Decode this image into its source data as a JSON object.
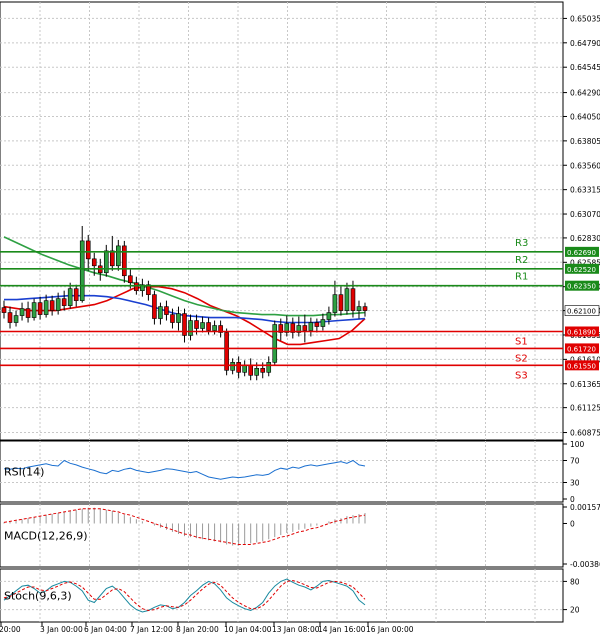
{
  "chart_data": {
    "type": "candlestick",
    "price_axis": {
      "ticks": [
        "0.65035",
        "0.64790",
        "0.64545",
        "0.64290",
        "0.64050",
        "0.63805",
        "0.63560",
        "0.63315",
        "0.63070",
        "0.62830",
        "0.62585",
        "0.62340",
        "0.62100",
        "0.61855",
        "0.61610",
        "0.61365",
        "0.61125",
        "0.60875"
      ],
      "range": [
        0.608,
        0.652
      ]
    },
    "time_axis": [
      "20:00",
      "3 Jan 00:00",
      "6 Jan 04:00",
      "7 Jan 12:00",
      "8 Jan 20:00",
      "10 Jan 04:00",
      "13 Jan 08:00",
      "14 Jan 16:00",
      "16 Jan 00:00"
    ],
    "levels": [
      {
        "name": "R3",
        "value": 0.6269,
        "label": "0.62690",
        "color": "#1a8a1a"
      },
      {
        "name": "R2",
        "value": 0.6252,
        "label": "0.62520",
        "color": "#1a8a1a"
      },
      {
        "name": "R1",
        "value": 0.6235,
        "label": "0.62350",
        "color": "#1a8a1a"
      },
      {
        "name": "S1",
        "value": 0.6189,
        "label": "0.61890",
        "color": "#e00000"
      },
      {
        "name": "S2",
        "value": 0.6172,
        "label": "0.61720",
        "color": "#e00000"
      },
      {
        "name": "S3",
        "value": 0.6155,
        "label": "0.61550",
        "color": "#e00000"
      }
    ],
    "current_price": {
      "value": 0.621,
      "label": "0.62100"
    },
    "candles": [
      [
        0.6213,
        0.6208,
        0.622,
        0.6202
      ],
      [
        0.6208,
        0.6198,
        0.6214,
        0.6192
      ],
      [
        0.6198,
        0.6205,
        0.621,
        0.6194
      ],
      [
        0.6205,
        0.6212,
        0.6218,
        0.62
      ],
      [
        0.6212,
        0.6203,
        0.6219,
        0.6198
      ],
      [
        0.6203,
        0.6218,
        0.6222,
        0.62
      ],
      [
        0.6218,
        0.6206,
        0.6224,
        0.6201
      ],
      [
        0.6206,
        0.622,
        0.6226,
        0.6203
      ],
      [
        0.622,
        0.621,
        0.6225,
        0.6205
      ],
      [
        0.621,
        0.6222,
        0.6228,
        0.6206
      ],
      [
        0.6222,
        0.6215,
        0.623,
        0.621
      ],
      [
        0.6215,
        0.6232,
        0.6238,
        0.6212
      ],
      [
        0.6232,
        0.622,
        0.6236,
        0.6214
      ],
      [
        0.622,
        0.628,
        0.6295,
        0.6218
      ],
      [
        0.628,
        0.6262,
        0.6286,
        0.625
      ],
      [
        0.6262,
        0.6255,
        0.6268,
        0.6245
      ],
      [
        0.6255,
        0.6248,
        0.6262,
        0.624
      ],
      [
        0.6248,
        0.627,
        0.6276,
        0.6244
      ],
      [
        0.627,
        0.6255,
        0.6285,
        0.625
      ],
      [
        0.6255,
        0.6275,
        0.6281,
        0.625
      ],
      [
        0.6275,
        0.6245,
        0.628,
        0.6238
      ],
      [
        0.6245,
        0.6238,
        0.6252,
        0.6232
      ],
      [
        0.6238,
        0.623,
        0.6244,
        0.6226
      ],
      [
        0.623,
        0.6236,
        0.6242,
        0.6224
      ],
      [
        0.6236,
        0.6226,
        0.624,
        0.622
      ],
      [
        0.6226,
        0.6202,
        0.623,
        0.6196
      ],
      [
        0.6202,
        0.6214,
        0.6218,
        0.6196
      ],
      [
        0.6214,
        0.6206,
        0.622,
        0.62
      ],
      [
        0.6206,
        0.6198,
        0.6212,
        0.6192
      ],
      [
        0.6198,
        0.6207,
        0.6214,
        0.619
      ],
      [
        0.6207,
        0.6185,
        0.6212,
        0.6178
      ],
      [
        0.6185,
        0.62,
        0.6206,
        0.618
      ],
      [
        0.62,
        0.6192,
        0.6206,
        0.6186
      ],
      [
        0.6192,
        0.6198,
        0.6204,
        0.6188
      ],
      [
        0.6198,
        0.619,
        0.6203,
        0.6186
      ],
      [
        0.619,
        0.6195,
        0.62,
        0.6186
      ],
      [
        0.6195,
        0.6188,
        0.62,
        0.6183
      ],
      [
        0.6188,
        0.615,
        0.6192,
        0.6145
      ],
      [
        0.615,
        0.6158,
        0.6162,
        0.6146
      ],
      [
        0.6158,
        0.6148,
        0.6164,
        0.6142
      ],
      [
        0.6148,
        0.6155,
        0.616,
        0.6144
      ],
      [
        0.6155,
        0.6145,
        0.6162,
        0.614
      ],
      [
        0.6145,
        0.6152,
        0.6158,
        0.614
      ],
      [
        0.6152,
        0.6148,
        0.6158,
        0.6142
      ],
      [
        0.6148,
        0.6158,
        0.6164,
        0.6144
      ],
      [
        0.6158,
        0.6196,
        0.62,
        0.6155
      ],
      [
        0.6196,
        0.6188,
        0.6202,
        0.618
      ],
      [
        0.6188,
        0.6197,
        0.6205,
        0.6184
      ],
      [
        0.6197,
        0.6188,
        0.6203,
        0.6182
      ],
      [
        0.6188,
        0.6195,
        0.6204,
        0.6184
      ],
      [
        0.6195,
        0.619,
        0.6206,
        0.6178
      ],
      [
        0.619,
        0.6198,
        0.6203,
        0.6184
      ],
      [
        0.6198,
        0.6194,
        0.6202,
        0.6188
      ],
      [
        0.6194,
        0.6201,
        0.6207,
        0.619
      ],
      [
        0.6201,
        0.6208,
        0.6214,
        0.6196
      ],
      [
        0.6208,
        0.6226,
        0.624,
        0.6204
      ],
      [
        0.6226,
        0.621,
        0.6234,
        0.6205
      ],
      [
        0.621,
        0.6232,
        0.6238,
        0.6206
      ],
      [
        0.6232,
        0.621,
        0.624,
        0.6203
      ],
      [
        0.621,
        0.6214,
        0.622,
        0.6202
      ],
      [
        0.6214,
        0.621,
        0.6218,
        0.6204
      ]
    ],
    "moving_averages": [
      {
        "color": "#e00000",
        "values": [
          0.6214,
          0.6212,
          0.621,
          0.621,
          0.621,
          0.6212,
          0.6214,
          0.6216,
          0.622,
          0.6226,
          0.6232,
          0.6234,
          0.6234,
          0.6232,
          0.6228,
          0.6222,
          0.6215,
          0.621,
          0.6205,
          0.6198,
          0.619,
          0.6182,
          0.6176,
          0.6176,
          0.6178,
          0.618,
          0.6182,
          0.619,
          0.6202
        ]
      },
      {
        "color": "#1a3fd0",
        "values": [
          0.6221,
          0.6221,
          0.6222,
          0.6223,
          0.6224,
          0.6225,
          0.6225,
          0.6225,
          0.6224,
          0.6222,
          0.6219,
          0.6216,
          0.6212,
          0.6208,
          0.6205,
          0.6204,
          0.6203,
          0.6203,
          0.6203,
          0.6202,
          0.6201,
          0.6199,
          0.6198,
          0.6198,
          0.6198,
          0.6199,
          0.62,
          0.6201,
          0.6202
        ]
      },
      {
        "color": "#2ea043",
        "values": [
          0.6284,
          0.6278,
          0.6272,
          0.6266,
          0.6261,
          0.6256,
          0.6252,
          0.6248,
          0.6245,
          0.6241,
          0.6238,
          0.6234,
          0.623,
          0.6225,
          0.622,
          0.6216,
          0.6213,
          0.621,
          0.6208,
          0.6207,
          0.6206,
          0.6206,
          0.6205,
          0.6205,
          0.6205,
          0.6206,
          0.6206,
          0.6207,
          0.6208
        ]
      }
    ],
    "indicators": [
      {
        "name": "RSI(14)",
        "label": "RSI(14)",
        "ticks": [
          "100",
          "70",
          "30",
          "0"
        ],
        "range": [
          0,
          100
        ],
        "color": "#1a6fd0",
        "values": [
          55,
          54,
          56,
          55,
          58,
          60,
          62,
          64,
          61,
          60,
          70,
          65,
          62,
          58,
          55,
          52,
          48,
          46,
          52,
          50,
          54,
          56,
          52,
          50,
          48,
          50,
          52,
          55,
          54,
          52,
          50,
          48,
          50,
          45,
          40,
          38,
          36,
          38,
          40,
          39,
          40,
          42,
          44,
          43,
          45,
          52,
          56,
          54,
          58,
          56,
          60,
          62,
          60,
          62,
          64,
          66,
          68,
          65,
          70,
          62,
          60
        ]
      },
      {
        "name": "MACD(12,26,9)",
        "label": "MACD(12,26,9)",
        "ticks": [
          "0.00157",
          "0",
          "-0.00386"
        ],
        "range": [
          -0.00386,
          0.00157
        ],
        "color": "#e00000",
        "histogram": [
          0.0001,
          0.0002,
          0.0003,
          0.0004,
          0.0005,
          0.0006,
          0.0007,
          0.0008,
          0.0009,
          0.001,
          0.0011,
          0.0012,
          0.0013,
          0.0014,
          0.0015,
          0.0015,
          0.0014,
          0.0013,
          0.0012,
          0.001,
          0.0008,
          0.0006,
          0.0004,
          0.0002,
          0.0,
          -0.0002,
          -0.0004,
          -0.0006,
          -0.0008,
          -0.001,
          -0.0012,
          -0.0013,
          -0.0014,
          -0.0015,
          -0.0016,
          -0.0017,
          -0.0018,
          -0.002,
          -0.0021,
          -0.0021,
          -0.002,
          -0.0019,
          -0.0018,
          -0.0017,
          -0.0015,
          -0.0013,
          -0.0011,
          -0.0009,
          -0.0008,
          -0.0006,
          -0.0005,
          -0.0003,
          -0.0002,
          0.0,
          0.0002,
          0.0004,
          0.0005,
          0.0007,
          0.0008,
          0.0009,
          0.001
        ],
        "signal": [
          0.0001,
          0.0002,
          0.0003,
          0.0004,
          0.0005,
          0.0006,
          0.0007,
          0.0008,
          0.0009,
          0.001,
          0.0011,
          0.0012,
          0.0013,
          0.0014,
          0.0014,
          0.0014,
          0.0014,
          0.0013,
          0.0012,
          0.0011,
          0.0009,
          0.0008,
          0.0006,
          0.0004,
          0.0002,
          0.0,
          -0.0002,
          -0.0004,
          -0.0006,
          -0.0008,
          -0.001,
          -0.0011,
          -0.0013,
          -0.0014,
          -0.0015,
          -0.0016,
          -0.0017,
          -0.0018,
          -0.0019,
          -0.002,
          -0.002,
          -0.002,
          -0.0019,
          -0.0018,
          -0.0017,
          -0.0015,
          -0.0013,
          -0.0012,
          -0.001,
          -0.0008,
          -0.0007,
          -0.0005,
          -0.0004,
          -0.0002,
          0.0,
          0.0002,
          0.0003,
          0.0005,
          0.0006,
          0.0007,
          0.0008
        ]
      },
      {
        "name": "Stoch(9,6,3)",
        "label": "Stoch(9,6,3)",
        "ticks": [
          "80",
          "20"
        ],
        "range": [
          0,
          100
        ],
        "main_color": "#1a8aa0",
        "signal_color": "#e00000",
        "main": [
          40,
          50,
          60,
          70,
          72,
          65,
          55,
          60,
          70,
          75,
          80,
          78,
          70,
          60,
          40,
          35,
          50,
          65,
          70,
          60,
          45,
          30,
          20,
          15,
          18,
          25,
          30,
          28,
          22,
          25,
          35,
          50,
          60,
          72,
          80,
          75,
          62,
          45,
          35,
          28,
          22,
          18,
          25,
          35,
          55,
          70,
          80,
          85,
          78,
          72,
          68,
          62,
          70,
          80,
          82,
          78,
          74,
          70,
          60,
          40,
          30
        ],
        "signal": [
          45,
          48,
          55,
          62,
          68,
          68,
          62,
          60,
          65,
          70,
          76,
          79,
          75,
          68,
          55,
          42,
          42,
          52,
          62,
          65,
          58,
          45,
          32,
          22,
          18,
          20,
          25,
          28,
          26,
          25,
          30,
          40,
          52,
          64,
          74,
          78,
          72,
          58,
          45,
          35,
          28,
          22,
          22,
          28,
          40,
          55,
          70,
          80,
          82,
          78,
          73,
          67,
          66,
          72,
          78,
          80,
          78,
          74,
          68,
          55,
          42
        ]
      }
    ]
  }
}
